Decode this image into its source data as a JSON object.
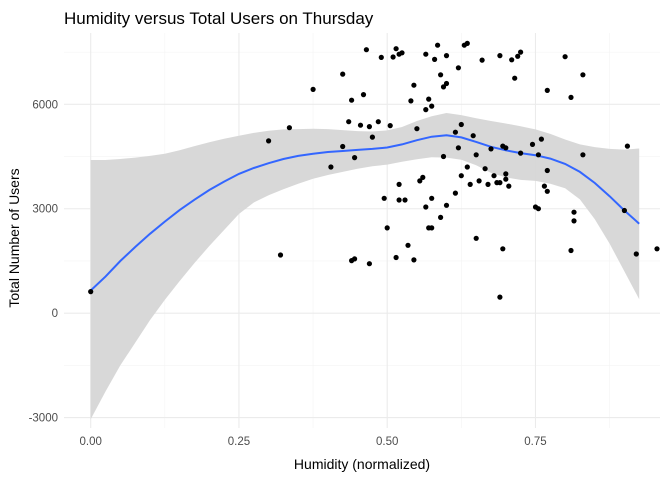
{
  "chart_data": {
    "type": "scatter",
    "title": "Humidity versus Total Users on Thursday",
    "xlabel": "Humidity (normalized)",
    "ylabel": "Total Number of Users",
    "xlim": [
      -0.045,
      0.96
    ],
    "ylim": [
      -3300,
      8050
    ],
    "x_ticks": [
      0,
      0.25,
      0.5,
      0.75
    ],
    "x_tick_labels": [
      "0.00",
      "0.25",
      "0.50",
      "0.75"
    ],
    "x_minor_ticks": [
      0.125,
      0.375,
      0.625,
      0.875
    ],
    "y_ticks": [
      -3000,
      0,
      3000,
      6000
    ],
    "y_tick_labels": [
      "-3000",
      "0",
      "3000",
      "6000"
    ],
    "y_minor_ticks": [
      -1500,
      1500,
      4500,
      7500
    ],
    "grid": true,
    "background": "#ffffff",
    "colors": {
      "points": "#000000",
      "smooth_line": "#3366ff",
      "confidence_band": "#d6d6d6",
      "grid_major": "#ebebeb",
      "grid_minor": "#f4f4f4"
    },
    "points": [
      [
        0.0,
        620
      ],
      [
        0.3,
        4950
      ],
      [
        0.32,
        1670
      ],
      [
        0.335,
        5330
      ],
      [
        0.375,
        6430
      ],
      [
        0.405,
        4200
      ],
      [
        0.425,
        6870
      ],
      [
        0.425,
        4790
      ],
      [
        0.435,
        5500
      ],
      [
        0.44,
        6120
      ],
      [
        0.44,
        1510
      ],
      [
        0.445,
        1560
      ],
      [
        0.445,
        4470
      ],
      [
        0.455,
        5400
      ],
      [
        0.46,
        6280
      ],
      [
        0.465,
        7570
      ],
      [
        0.47,
        5360
      ],
      [
        0.47,
        1420
      ],
      [
        0.475,
        5060
      ],
      [
        0.485,
        5500
      ],
      [
        0.49,
        7350
      ],
      [
        0.495,
        3300
      ],
      [
        0.5,
        2450
      ],
      [
        0.505,
        5390
      ],
      [
        0.51,
        7360
      ],
      [
        0.515,
        7600
      ],
      [
        0.515,
        1600
      ],
      [
        0.52,
        3700
      ],
      [
        0.52,
        3250
      ],
      [
        0.52,
        7440
      ],
      [
        0.525,
        7480
      ],
      [
        0.53,
        3250
      ],
      [
        0.535,
        1950
      ],
      [
        0.54,
        6100
      ],
      [
        0.545,
        1530
      ],
      [
        0.545,
        6550
      ],
      [
        0.55,
        5300
      ],
      [
        0.555,
        3800
      ],
      [
        0.56,
        3900
      ],
      [
        0.565,
        5850
      ],
      [
        0.565,
        7440
      ],
      [
        0.565,
        3050
      ],
      [
        0.57,
        2450
      ],
      [
        0.57,
        6150
      ],
      [
        0.575,
        3300
      ],
      [
        0.575,
        2450
      ],
      [
        0.575,
        5950
      ],
      [
        0.58,
        7290
      ],
      [
        0.585,
        7700
      ],
      [
        0.59,
        2750
      ],
      [
        0.59,
        6850
      ],
      [
        0.595,
        6500
      ],
      [
        0.595,
        4500
      ],
      [
        0.6,
        7400
      ],
      [
        0.6,
        3100
      ],
      [
        0.6,
        6600
      ],
      [
        0.615,
        5200
      ],
      [
        0.615,
        3450
      ],
      [
        0.62,
        7050
      ],
      [
        0.62,
        4750
      ],
      [
        0.625,
        5420
      ],
      [
        0.625,
        3950
      ],
      [
        0.63,
        7700
      ],
      [
        0.635,
        7750
      ],
      [
        0.635,
        4200
      ],
      [
        0.64,
        3700
      ],
      [
        0.645,
        5100
      ],
      [
        0.65,
        4550
      ],
      [
        0.65,
        2150
      ],
      [
        0.655,
        3800
      ],
      [
        0.66,
        7270
      ],
      [
        0.665,
        4150
      ],
      [
        0.67,
        3700
      ],
      [
        0.675,
        4720
      ],
      [
        0.68,
        3950
      ],
      [
        0.685,
        3750
      ],
      [
        0.69,
        7400
      ],
      [
        0.69,
        460
      ],
      [
        0.69,
        3750
      ],
      [
        0.695,
        4800
      ],
      [
        0.695,
        1850
      ],
      [
        0.7,
        4000
      ],
      [
        0.7,
        4750
      ],
      [
        0.7,
        3850
      ],
      [
        0.705,
        3650
      ],
      [
        0.71,
        7280
      ],
      [
        0.715,
        6750
      ],
      [
        0.72,
        7380
      ],
      [
        0.725,
        7500
      ],
      [
        0.725,
        4600
      ],
      [
        0.745,
        4850
      ],
      [
        0.75,
        3050
      ],
      [
        0.755,
        3000
      ],
      [
        0.755,
        4550
      ],
      [
        0.76,
        5000
      ],
      [
        0.765,
        3650
      ],
      [
        0.77,
        6400
      ],
      [
        0.77,
        4100
      ],
      [
        0.77,
        3500
      ],
      [
        0.8,
        7370
      ],
      [
        0.81,
        1800
      ],
      [
        0.81,
        6200
      ],
      [
        0.815,
        2900
      ],
      [
        0.815,
        2650
      ],
      [
        0.83,
        4550
      ],
      [
        0.83,
        6850
      ],
      [
        0.9,
        2950
      ],
      [
        0.905,
        4800
      ],
      [
        0.92,
        1700
      ],
      [
        0.955,
        1850
      ]
    ],
    "smooth_line": [
      [
        0.0,
        650
      ],
      [
        0.025,
        1050
      ],
      [
        0.05,
        1500
      ],
      [
        0.075,
        1900
      ],
      [
        0.1,
        2280
      ],
      [
        0.125,
        2630
      ],
      [
        0.15,
        2960
      ],
      [
        0.175,
        3260
      ],
      [
        0.2,
        3540
      ],
      [
        0.225,
        3780
      ],
      [
        0.25,
        4000
      ],
      [
        0.275,
        4170
      ],
      [
        0.3,
        4310
      ],
      [
        0.325,
        4430
      ],
      [
        0.35,
        4520
      ],
      [
        0.375,
        4580
      ],
      [
        0.4,
        4630
      ],
      [
        0.425,
        4660
      ],
      [
        0.45,
        4690
      ],
      [
        0.475,
        4720
      ],
      [
        0.5,
        4760
      ],
      [
        0.525,
        4850
      ],
      [
        0.55,
        4970
      ],
      [
        0.575,
        5070
      ],
      [
        0.6,
        5110
      ],
      [
        0.625,
        5050
      ],
      [
        0.65,
        4920
      ],
      [
        0.675,
        4780
      ],
      [
        0.7,
        4680
      ],
      [
        0.725,
        4600
      ],
      [
        0.75,
        4540
      ],
      [
        0.775,
        4440
      ],
      [
        0.8,
        4290
      ],
      [
        0.825,
        4060
      ],
      [
        0.85,
        3740
      ],
      [
        0.875,
        3360
      ],
      [
        0.9,
        2950
      ],
      [
        0.925,
        2570
      ]
    ],
    "band_upper": [
      [
        0.0,
        4400
      ],
      [
        0.025,
        4400
      ],
      [
        0.05,
        4430
      ],
      [
        0.075,
        4470
      ],
      [
        0.1,
        4520
      ],
      [
        0.125,
        4580
      ],
      [
        0.15,
        4680
      ],
      [
        0.175,
        4800
      ],
      [
        0.2,
        4910
      ],
      [
        0.225,
        5010
      ],
      [
        0.25,
        5100
      ],
      [
        0.275,
        5180
      ],
      [
        0.3,
        5240
      ],
      [
        0.325,
        5280
      ],
      [
        0.35,
        5290
      ],
      [
        0.375,
        5300
      ],
      [
        0.4,
        5290
      ],
      [
        0.425,
        5260
      ],
      [
        0.45,
        5230
      ],
      [
        0.475,
        5220
      ],
      [
        0.5,
        5250
      ],
      [
        0.525,
        5350
      ],
      [
        0.55,
        5520
      ],
      [
        0.575,
        5660
      ],
      [
        0.6,
        5750
      ],
      [
        0.625,
        5690
      ],
      [
        0.65,
        5600
      ],
      [
        0.675,
        5520
      ],
      [
        0.7,
        5450
      ],
      [
        0.725,
        5370
      ],
      [
        0.75,
        5280
      ],
      [
        0.775,
        5150
      ],
      [
        0.8,
        4990
      ],
      [
        0.825,
        4850
      ],
      [
        0.85,
        4770
      ],
      [
        0.875,
        4720
      ],
      [
        0.9,
        4700
      ],
      [
        0.925,
        4730
      ]
    ],
    "band_lower": [
      [
        0.0,
        -3050
      ],
      [
        0.025,
        -2250
      ],
      [
        0.05,
        -1500
      ],
      [
        0.075,
        -850
      ],
      [
        0.1,
        -200
      ],
      [
        0.125,
        380
      ],
      [
        0.15,
        920
      ],
      [
        0.175,
        1440
      ],
      [
        0.2,
        1930
      ],
      [
        0.225,
        2390
      ],
      [
        0.25,
        2850
      ],
      [
        0.275,
        3180
      ],
      [
        0.3,
        3390
      ],
      [
        0.325,
        3560
      ],
      [
        0.35,
        3720
      ],
      [
        0.375,
        3860
      ],
      [
        0.4,
        3970
      ],
      [
        0.425,
        4060
      ],
      [
        0.45,
        4150
      ],
      [
        0.475,
        4220
      ],
      [
        0.5,
        4270
      ],
      [
        0.525,
        4350
      ],
      [
        0.55,
        4420
      ],
      [
        0.575,
        4480
      ],
      [
        0.6,
        4470
      ],
      [
        0.625,
        4410
      ],
      [
        0.65,
        4250
      ],
      [
        0.675,
        4030
      ],
      [
        0.7,
        3900
      ],
      [
        0.725,
        3830
      ],
      [
        0.75,
        3800
      ],
      [
        0.775,
        3720
      ],
      [
        0.8,
        3590
      ],
      [
        0.825,
        3270
      ],
      [
        0.85,
        2700
      ],
      [
        0.875,
        2000
      ],
      [
        0.9,
        1200
      ],
      [
        0.925,
        400
      ]
    ]
  }
}
